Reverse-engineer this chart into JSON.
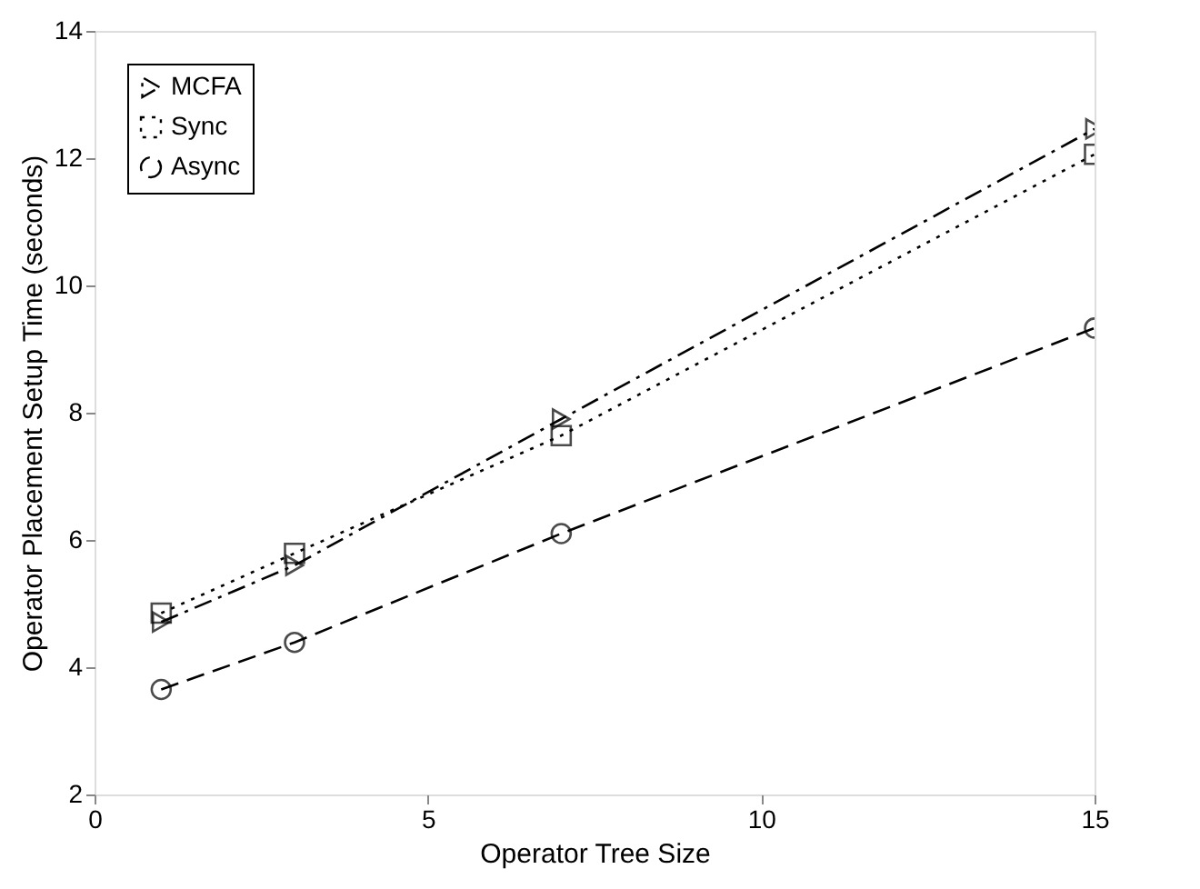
{
  "chart_data": {
    "type": "line",
    "xlabel": "Operator Tree Size",
    "ylabel": "Operator Placement Setup Time (seconds)",
    "x": [
      1,
      3,
      7,
      15
    ],
    "series": [
      {
        "name": "MCFA",
        "color": "#000000",
        "values": [
          4.71,
          5.6,
          7.9,
          12.46
        ],
        "marker": "triangle",
        "line_style": "dashdot"
      },
      {
        "name": "Sync",
        "color": "#000000",
        "values": [
          4.85,
          5.79,
          7.64,
          12.06
        ],
        "marker": "square",
        "line_style": "dotted"
      },
      {
        "name": "Async",
        "color": "#000000",
        "values": [
          3.65,
          4.39,
          6.1,
          9.33
        ],
        "marker": "circle",
        "line_style": "dashed"
      }
    ],
    "xlim": [
      0,
      15
    ],
    "xticks": [
      0,
      5,
      10,
      15
    ],
    "ylim": [
      2,
      14
    ],
    "yticks": [
      2,
      4,
      6,
      8,
      10,
      12,
      14
    ],
    "grid": false,
    "legend": "top left"
  }
}
